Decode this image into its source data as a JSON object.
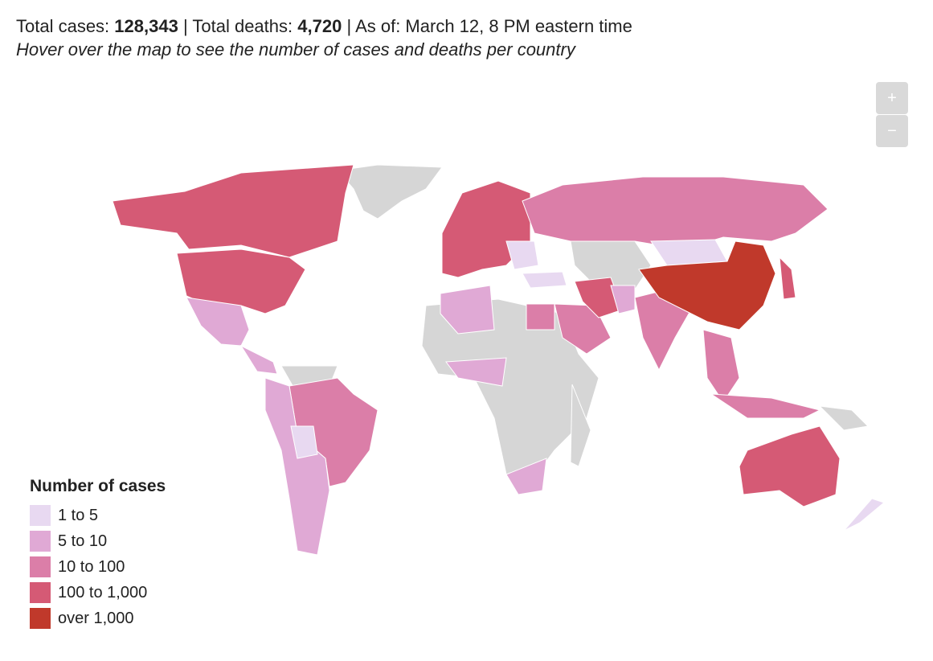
{
  "header": {
    "cases_label": "Total cases:",
    "cases": "128,343",
    "deaths_label": "| Total deaths:",
    "deaths": "4,720",
    "as_of": "| As of: March 12, 8 PM eastern time",
    "subtitle": "Hover over the map to see the number of cases and deaths per country"
  },
  "zoom": {
    "in": "+",
    "out": "−"
  },
  "legend": {
    "title": "Number of cases",
    "items": [
      {
        "label": "1 to 5",
        "color": "#e8d9f1"
      },
      {
        "label": "5 to 10",
        "color": "#e0a9d5"
      },
      {
        "label": "10 to 100",
        "color": "#db7ea8"
      },
      {
        "label": "100 to 1,000",
        "color": "#d55a75"
      },
      {
        "label": "over 1,000",
        "color": "#c0392b"
      }
    ]
  }
}
